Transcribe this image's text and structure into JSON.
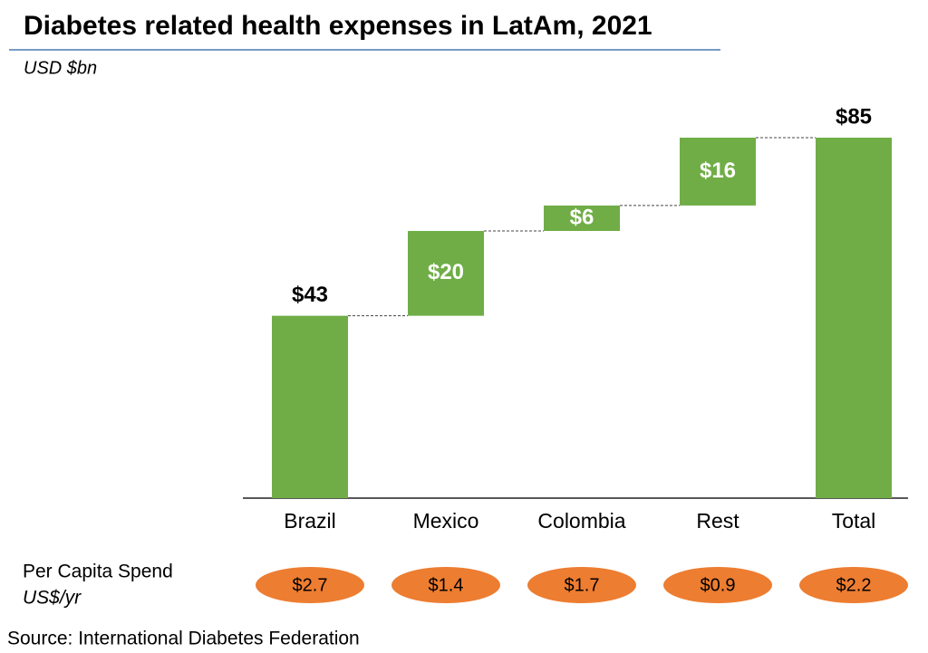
{
  "chart_data": {
    "type": "waterfall",
    "title": "Diabetes related health expenses in LatAm, 2021",
    "subtitle": "USD $bn",
    "categories": [
      "Brazil",
      "Mexico",
      "Colombia",
      "Rest",
      "Total"
    ],
    "values": [
      43,
      20,
      6,
      16,
      85
    ],
    "value_labels": [
      "$43",
      "$20",
      "$6",
      "$16",
      "$85"
    ],
    "is_total": [
      false,
      false,
      false,
      false,
      true
    ],
    "color": "#70ad47",
    "per_capita": {
      "label": "Per Capita Spend",
      "unit": "US$/yr",
      "values": [
        2.7,
        1.4,
        1.7,
        0.9,
        2.2
      ],
      "value_labels": [
        "$2.7",
        "$1.4",
        "$1.7",
        "$0.9",
        "$2.2"
      ],
      "color": "#ed7d31"
    },
    "source": "Source: International Diabetes Federation"
  }
}
